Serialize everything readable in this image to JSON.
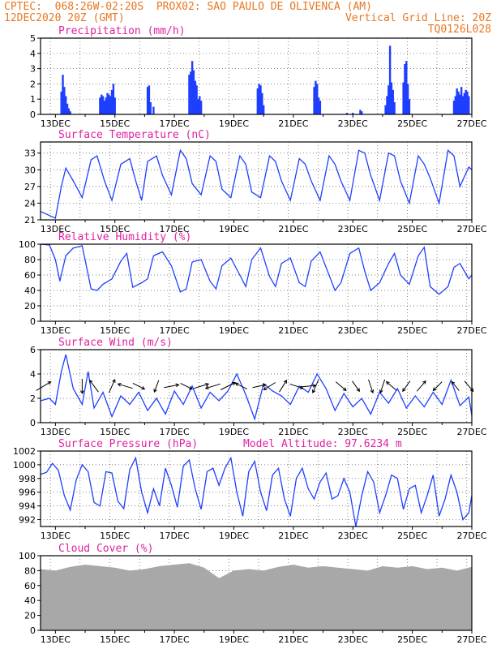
{
  "header": {
    "left_line1": "CPTEC:  068:26W-02:20S  PROX02: SAO PAULO DE OLIVENCA (AM)",
    "left_line2": "12DEC2020 20Z (GMT)",
    "right_line2": "Vertical Grid Line: 20Z",
    "right_line3": "TQ0126L028"
  },
  "colors": {
    "header": "#e87722",
    "title": "#e020a0",
    "series": "#1f3fff",
    "cloud": "#a8a8a8"
  },
  "x_axis": {
    "tick_labels": [
      "13DEC",
      "15DEC",
      "17DEC",
      "19DEC",
      "21DEC",
      "23DEC",
      "25DEC",
      "27DEC"
    ],
    "range_days": [
      12.5,
      27.0
    ]
  },
  "chart_data": [
    {
      "type": "bar",
      "title": "Precipitation (mm/h)",
      "ylim": [
        0,
        5
      ],
      "yticks": [
        "0",
        "1",
        "2",
        "3",
        "4",
        "5"
      ],
      "x": [
        13.2,
        13.25,
        13.3,
        13.35,
        13.4,
        13.45,
        13.5,
        14.5,
        14.55,
        14.6,
        14.65,
        14.7,
        14.75,
        14.8,
        14.85,
        14.9,
        14.95,
        15.0,
        16.1,
        16.15,
        16.2,
        16.3,
        17.5,
        17.55,
        17.6,
        17.65,
        17.7,
        17.75,
        17.8,
        17.85,
        17.9,
        19.8,
        19.85,
        19.9,
        19.95,
        20.0,
        21.7,
        21.75,
        21.8,
        21.85,
        21.9,
        22.8,
        23.0,
        23.25,
        23.3,
        24.1,
        24.15,
        24.2,
        24.25,
        24.3,
        24.35,
        24.4,
        24.7,
        24.75,
        24.8,
        24.85,
        24.9,
        26.4,
        26.45,
        26.5,
        26.55,
        26.6,
        26.65,
        26.7,
        26.75,
        26.8,
        26.85,
        26.9
      ],
      "values": [
        1.5,
        2.6,
        1.8,
        1.2,
        0.7,
        0.4,
        0.2,
        1.1,
        1.3,
        1.2,
        0.9,
        1.1,
        1.4,
        1.3,
        1.2,
        1.6,
        2.0,
        1.1,
        1.8,
        1.9,
        0.8,
        0.5,
        2.6,
        2.8,
        3.5,
        2.9,
        2.2,
        1.9,
        1.0,
        1.2,
        0.9,
        1.7,
        2.0,
        1.9,
        1.4,
        0.6,
        1.8,
        2.2,
        2.0,
        1.1,
        0.9,
        0.1,
        0.1,
        0.3,
        0.2,
        0.6,
        1.2,
        1.9,
        4.5,
        2.1,
        1.6,
        0.8,
        2.1,
        3.3,
        3.5,
        2.0,
        1.0,
        0.9,
        1.2,
        1.7,
        1.5,
        1.3,
        1.8,
        1.2,
        1.4,
        1.6,
        1.5,
        1.2
      ]
    },
    {
      "type": "line",
      "title": "Surface Temperature (nC)",
      "ylim": [
        21,
        35
      ],
      "yticks": [
        "21",
        "24",
        "27",
        "30",
        "33"
      ],
      "x": [
        12.5,
        13.0,
        13.2,
        13.35,
        13.6,
        13.9,
        14.2,
        14.4,
        14.65,
        14.9,
        15.2,
        15.5,
        15.7,
        15.9,
        16.1,
        16.4,
        16.6,
        16.9,
        17.2,
        17.4,
        17.6,
        17.9,
        18.2,
        18.4,
        18.6,
        18.9,
        19.2,
        19.4,
        19.6,
        19.9,
        20.2,
        20.4,
        20.6,
        20.9,
        21.2,
        21.4,
        21.6,
        21.9,
        22.2,
        22.4,
        22.6,
        22.9,
        23.2,
        23.4,
        23.6,
        23.9,
        24.2,
        24.4,
        24.6,
        24.9,
        25.2,
        25.4,
        25.6,
        25.9,
        26.2,
        26.4,
        26.6,
        26.9,
        27.0
      ],
      "values": [
        22.5,
        21.3,
        27.0,
        30.3,
        28.0,
        25.0,
        31.8,
        32.5,
        28.0,
        24.5,
        31.0,
        32.0,
        28.0,
        24.5,
        31.5,
        32.5,
        29.0,
        25.5,
        33.5,
        32.0,
        27.5,
        25.5,
        32.5,
        31.5,
        26.5,
        25.0,
        32.5,
        31.0,
        26.0,
        25.0,
        32.5,
        31.5,
        28.0,
        24.5,
        32.0,
        31.0,
        28.0,
        24.5,
        32.5,
        31.0,
        28.0,
        24.5,
        33.5,
        33.0,
        29.0,
        24.5,
        33.0,
        32.5,
        28.0,
        24.0,
        32.5,
        31.0,
        28.5,
        24.0,
        33.5,
        32.5,
        27.0,
        30.5,
        30.0
      ]
    },
    {
      "type": "line",
      "title": "Relative Humidity (%)",
      "ylim": [
        0,
        100
      ],
      "yticks": [
        "0",
        "20",
        "40",
        "60",
        "80",
        "100"
      ],
      "x": [
        12.5,
        12.8,
        13.0,
        13.15,
        13.35,
        13.6,
        13.9,
        14.2,
        14.4,
        14.6,
        14.9,
        15.2,
        15.4,
        15.6,
        15.9,
        16.1,
        16.3,
        16.6,
        16.9,
        17.2,
        17.4,
        17.6,
        17.9,
        18.2,
        18.4,
        18.6,
        18.9,
        19.2,
        19.4,
        19.6,
        19.9,
        20.2,
        20.4,
        20.6,
        20.9,
        21.2,
        21.4,
        21.6,
        21.9,
        22.2,
        22.4,
        22.6,
        22.9,
        23.2,
        23.4,
        23.6,
        23.9,
        24.2,
        24.4,
        24.6,
        24.9,
        25.2,
        25.4,
        25.6,
        25.9,
        26.2,
        26.4,
        26.6,
        26.9,
        27.0
      ],
      "values": [
        100,
        99,
        80,
        52,
        85,
        95,
        98,
        42,
        40,
        48,
        55,
        78,
        88,
        44,
        50,
        55,
        85,
        90,
        72,
        38,
        42,
        77,
        80,
        52,
        42,
        72,
        82,
        60,
        45,
        80,
        95,
        58,
        45,
        75,
        82,
        50,
        45,
        78,
        90,
        60,
        40,
        50,
        88,
        95,
        65,
        40,
        50,
        75,
        88,
        60,
        48,
        85,
        96,
        45,
        35,
        45,
        70,
        75,
        55,
        60
      ]
    },
    {
      "type": "line",
      "title": "Surface Wind (m/s)",
      "ylim": [
        0,
        6
      ],
      "yticks": [
        "0",
        "2",
        "4",
        "6"
      ],
      "x": [
        12.5,
        12.8,
        13.0,
        13.2,
        13.35,
        13.6,
        13.9,
        14.1,
        14.3,
        14.6,
        14.9,
        15.2,
        15.5,
        15.8,
        16.1,
        16.4,
        16.7,
        17.0,
        17.3,
        17.6,
        17.9,
        18.2,
        18.5,
        18.8,
        19.1,
        19.4,
        19.7,
        20.0,
        20.3,
        20.6,
        20.9,
        21.2,
        21.5,
        21.8,
        22.1,
        22.4,
        22.7,
        23.0,
        23.3,
        23.6,
        23.9,
        24.2,
        24.5,
        24.8,
        25.1,
        25.4,
        25.7,
        26.0,
        26.3,
        26.6,
        26.9,
        27.0
      ],
      "values": [
        1.8,
        2.0,
        1.5,
        4.2,
        5.6,
        2.8,
        1.5,
        4.2,
        1.2,
        2.5,
        0.5,
        2.2,
        1.5,
        2.5,
        1.0,
        2.0,
        0.7,
        2.6,
        1.5,
        3.0,
        1.2,
        2.5,
        1.8,
        2.6,
        4.0,
        2.3,
        0.3,
        3.2,
        2.6,
        2.2,
        1.5,
        3.0,
        2.5,
        4.0,
        2.8,
        1.0,
        2.4,
        1.3,
        2.0,
        0.7,
        2.5,
        1.6,
        2.8,
        1.2,
        2.2,
        1.3,
        2.5,
        1.5,
        3.5,
        1.4,
        2.1,
        0.6
      ],
      "arrows": [
        {
          "x": 12.6,
          "u": 1,
          "v": 0.6
        },
        {
          "x": 13.9,
          "u": 0,
          "v": -1
        },
        {
          "x": 14.3,
          "u": -0.6,
          "v": 0.8
        },
        {
          "x": 14.9,
          "u": 0.4,
          "v": 0.9
        },
        {
          "x": 15.35,
          "u": -1,
          "v": 0.3
        },
        {
          "x": 15.8,
          "u": 0.8,
          "v": -0.4
        },
        {
          "x": 16.4,
          "u": -0.3,
          "v": -0.8
        },
        {
          "x": 16.9,
          "u": 1,
          "v": 0.2
        },
        {
          "x": 17.4,
          "u": 0.8,
          "v": -0.4
        },
        {
          "x": 17.9,
          "u": 1,
          "v": 0.3
        },
        {
          "x": 18.3,
          "u": -1,
          "v": -0.3
        },
        {
          "x": 18.8,
          "u": 1,
          "v": 0.5
        },
        {
          "x": 19.25,
          "u": -0.8,
          "v": 0.4
        },
        {
          "x": 19.85,
          "u": 0.9,
          "v": 0.2
        },
        {
          "x": 20.2,
          "u": -0.8,
          "v": -0.5
        },
        {
          "x": 20.65,
          "u": 0.5,
          "v": 0.8
        },
        {
          "x": 21.1,
          "u": 0.9,
          "v": -0.3
        },
        {
          "x": 21.5,
          "u": 1,
          "v": 0.1
        },
        {
          "x": 21.75,
          "u": -0.4,
          "v": -0.9
        },
        {
          "x": 22.6,
          "u": 0.7,
          "v": -0.6
        },
        {
          "x": 23.1,
          "u": 0.5,
          "v": -0.7
        },
        {
          "x": 23.6,
          "u": 0.3,
          "v": -0.9
        },
        {
          "x": 24.0,
          "u": -0.3,
          "v": -0.9
        },
        {
          "x": 24.3,
          "u": -0.7,
          "v": 0.6
        },
        {
          "x": 24.8,
          "u": -0.5,
          "v": -0.7
        },
        {
          "x": 25.3,
          "u": 0.6,
          "v": 0.7
        },
        {
          "x": 25.85,
          "u": -0.6,
          "v": -0.6
        },
        {
          "x": 26.45,
          "u": -0.5,
          "v": 0.6
        },
        {
          "x": 26.9,
          "u": 0.6,
          "v": -0.7
        }
      ]
    },
    {
      "type": "line",
      "title": "Surface Pressure (hPa)",
      "annotation": "Model Altitude: 97.6234 m",
      "ylim": [
        991,
        1002
      ],
      "yticks": [
        "992",
        "994",
        "996",
        "998",
        "1000",
        "1002"
      ],
      "x": [
        12.5,
        12.7,
        12.9,
        13.1,
        13.3,
        13.5,
        13.7,
        13.9,
        14.1,
        14.3,
        14.5,
        14.7,
        14.9,
        15.1,
        15.3,
        15.5,
        15.7,
        15.9,
        16.1,
        16.3,
        16.5,
        16.7,
        16.9,
        17.1,
        17.3,
        17.5,
        17.7,
        17.9,
        18.1,
        18.3,
        18.5,
        18.7,
        18.9,
        19.1,
        19.3,
        19.5,
        19.7,
        19.9,
        20.1,
        20.3,
        20.5,
        20.7,
        20.9,
        21.1,
        21.3,
        21.5,
        21.7,
        21.9,
        22.1,
        22.3,
        22.5,
        22.7,
        22.9,
        23.1,
        23.3,
        23.5,
        23.7,
        23.9,
        24.1,
        24.3,
        24.5,
        24.7,
        24.9,
        25.1,
        25.3,
        25.5,
        25.7,
        25.9,
        26.1,
        26.3,
        26.5,
        26.7,
        26.9,
        27.0
      ],
      "values": [
        998.6,
        998.9,
        1000.2,
        999.2,
        995.5,
        993.4,
        997.8,
        1000.0,
        999.0,
        994.5,
        994.0,
        999.0,
        998.8,
        994.7,
        993.6,
        999.3,
        1001.0,
        996.0,
        993.0,
        996.5,
        994.0,
        999.5,
        997.0,
        993.8,
        999.8,
        1000.7,
        996.5,
        993.5,
        999.0,
        999.5,
        997.0,
        999.5,
        1001.0,
        996.0,
        992.5,
        999.0,
        1000.5,
        996.0,
        993.3,
        998.5,
        999.5,
        995.0,
        992.5,
        998.0,
        999.5,
        996.5,
        995.0,
        997.5,
        998.8,
        995.0,
        995.5,
        998.0,
        996.0,
        991.0,
        995.5,
        999.0,
        997.5,
        993.0,
        995.5,
        998.5,
        998.0,
        993.5,
        996.5,
        997.0,
        993.0,
        995.5,
        998.5,
        992.5,
        995.0,
        998.5,
        996.0,
        992.0,
        993.0,
        995.5
      ]
    },
    {
      "type": "area",
      "title": "Cloud Cover (%)",
      "ylim": [
        0,
        100
      ],
      "yticks": [
        "0",
        "20",
        "40",
        "60",
        "80",
        "100"
      ],
      "x": [
        12.5,
        13.0,
        13.5,
        14.0,
        14.5,
        15.0,
        15.5,
        16.0,
        16.5,
        17.0,
        17.5,
        18.0,
        18.5,
        19.0,
        19.5,
        20.0,
        20.5,
        21.0,
        21.5,
        22.0,
        22.5,
        23.0,
        23.5,
        24.0,
        24.5,
        25.0,
        25.5,
        26.0,
        26.5,
        27.0
      ],
      "values": [
        82,
        80,
        85,
        88,
        86,
        84,
        80,
        82,
        86,
        88,
        90,
        84,
        70,
        80,
        82,
        80,
        85,
        88,
        84,
        86,
        84,
        82,
        80,
        86,
        84,
        86,
        82,
        84,
        80,
        85
      ]
    }
  ]
}
